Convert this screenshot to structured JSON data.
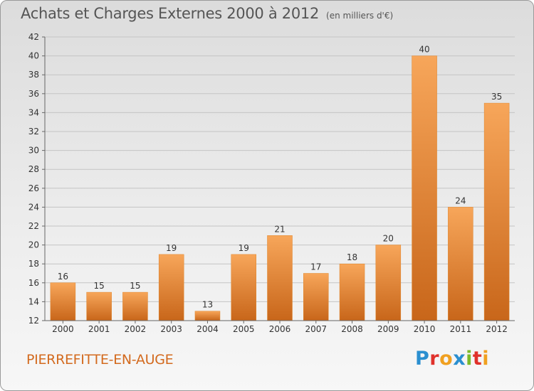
{
  "title": "Achats et Charges Externes 2000 à 2012",
  "subtitle": "(en milliers d'€)",
  "commune": "PIERREFITTE-EN-AUGE",
  "logo": {
    "letters": [
      {
        "ch": "P",
        "color": "#2a8fd0"
      },
      {
        "ch": "r",
        "color": "#e0312b"
      },
      {
        "ch": "o",
        "color": "#f0a020"
      },
      {
        "ch": "x",
        "color": "#2a8fd0"
      },
      {
        "ch": "i",
        "color": "#7cba2a"
      },
      {
        "ch": "t",
        "color": "#e0312b"
      },
      {
        "ch": "i",
        "color": "#f0a020"
      }
    ]
  },
  "chart_data": {
    "type": "bar",
    "categories": [
      "2000",
      "2001",
      "2002",
      "2003",
      "2004",
      "2005",
      "2006",
      "2007",
      "2008",
      "2009",
      "2010",
      "2011",
      "2012"
    ],
    "values": [
      16,
      15,
      15,
      19,
      13,
      19,
      21,
      17,
      18,
      20,
      40,
      24,
      35
    ],
    "ylim": [
      12,
      42
    ],
    "yticks": [
      12,
      14,
      16,
      18,
      20,
      22,
      24,
      26,
      28,
      30,
      32,
      34,
      36,
      38,
      40,
      42
    ],
    "grid": true,
    "bar_color": "#f0922e",
    "legend": "none"
  }
}
